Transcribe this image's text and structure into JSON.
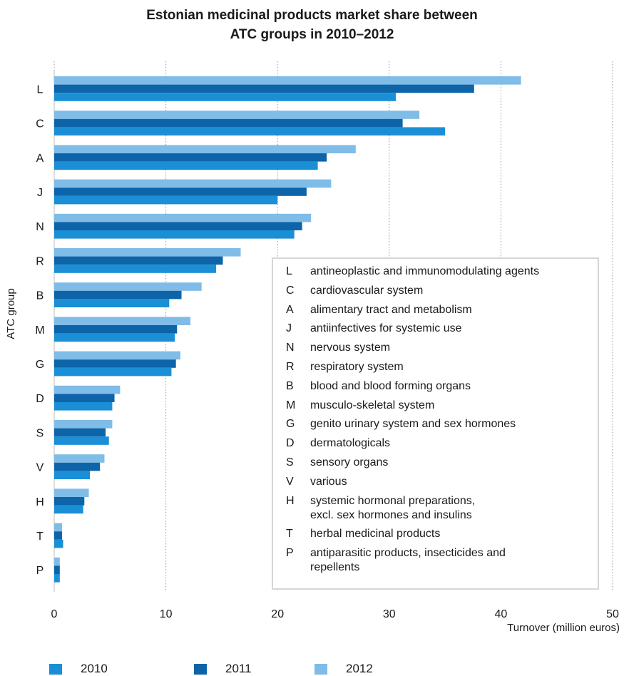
{
  "chart_data": {
    "type": "bar",
    "orientation": "horizontal",
    "title": [
      "Estonian medicinal products market share between",
      "ATC groups in 2010–2012"
    ],
    "xlabel": "Turnover (million euros)",
    "ylabel": "ATC group",
    "xlim": [
      0,
      50
    ],
    "xticks": [
      "0",
      "10",
      "20",
      "30",
      "40",
      "50"
    ],
    "grid": "vertical dotted",
    "categories": [
      "L",
      "C",
      "A",
      "J",
      "N",
      "R",
      "B",
      "M",
      "G",
      "D",
      "S",
      "V",
      "H",
      "T",
      "P"
    ],
    "series": [
      {
        "name": "2010",
        "color": "#1a8fd6",
        "values": [
          30.6,
          35.0,
          23.6,
          20.0,
          21.5,
          14.5,
          10.3,
          10.8,
          10.5,
          5.2,
          4.9,
          3.2,
          2.6,
          0.8,
          0.5
        ]
      },
      {
        "name": "2011",
        "color": "#0e64a9",
        "values": [
          37.6,
          31.2,
          24.4,
          22.6,
          22.2,
          15.1,
          11.4,
          11.0,
          10.9,
          5.4,
          4.6,
          4.1,
          2.7,
          0.7,
          0.5
        ]
      },
      {
        "name": "2012",
        "color": "#7fbce8",
        "values": [
          41.8,
          32.7,
          27.0,
          24.8,
          23.0,
          16.7,
          13.2,
          12.2,
          11.3,
          5.9,
          5.2,
          4.5,
          3.1,
          0.7,
          0.5
        ]
      }
    ],
    "legend_placement": "bottom",
    "annotation_legend": [
      {
        "code": "L",
        "text": "antineoplastic and immunomodulating agents"
      },
      {
        "code": "C",
        "text": "cardiovascular system"
      },
      {
        "code": "A",
        "text": "alimentary tract and metabolism"
      },
      {
        "code": "J",
        "text": "antiinfectives for systemic use"
      },
      {
        "code": "N",
        "text": "nervous system"
      },
      {
        "code": "R",
        "text": "respiratory system"
      },
      {
        "code": "B",
        "text": "blood and blood forming organs"
      },
      {
        "code": "M",
        "text": "musculo-skeletal system"
      },
      {
        "code": "G",
        "text": "genito urinary system and sex hormones"
      },
      {
        "code": "D",
        "text": "dermatologicals"
      },
      {
        "code": "S",
        "text": "sensory organs"
      },
      {
        "code": "V",
        "text": "various"
      },
      {
        "code": "H",
        "text": "systemic hormonal preparations,\nexcl. sex hormones and insulins"
      },
      {
        "code": "T",
        "text": "herbal medicinal products"
      },
      {
        "code": "P",
        "text": "antiparasitic products, insecticides and\nrepellents"
      }
    ]
  }
}
